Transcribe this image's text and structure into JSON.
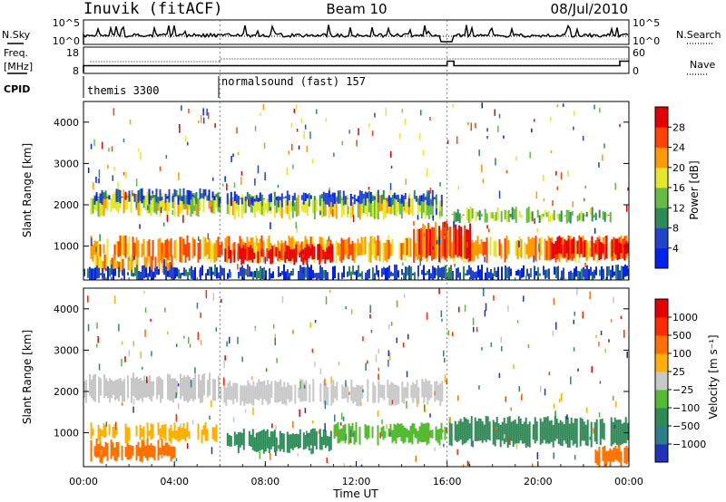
{
  "header": {
    "station": "Inuvik (fitACF)",
    "beam": "Beam 10",
    "date": "08/Jul/2010"
  },
  "labels": {
    "nsky": "N.Sky",
    "nsearch": "N.Search",
    "freq_line1": "Freq.",
    "freq_line2": "[MHz]",
    "nave": "Nave",
    "cpid": "CPID",
    "slant_range": "Slant Range [km]",
    "time_axis": "Time UT",
    "power_label": "Power [dB]",
    "velocity_label": "Velocity [m s⁻¹]"
  },
  "chart_data": [
    {
      "type": "line",
      "name": "noise-panel",
      "left_ticks": [
        "10^5",
        "10^0"
      ],
      "right_ticks": [
        "10^5",
        "10^0"
      ]
    },
    {
      "type": "line",
      "name": "frequency-panel",
      "left_ticks": [
        "18",
        "8"
      ],
      "right_ticks": [
        "60",
        "0"
      ],
      "frequency_steps": [
        {
          "t": 0.0,
          "f": 11
        },
        {
          "t": 6.0,
          "f": 11
        },
        {
          "t": 16.0,
          "f": 13
        },
        {
          "t": 16.3,
          "f": 11
        },
        {
          "t": 23.6,
          "f": 13
        },
        {
          "t": 24.0,
          "f": 13
        }
      ]
    },
    {
      "type": "table",
      "name": "cpid-panel",
      "programs": [
        {
          "start": 0.0,
          "end": 6.0,
          "label": "themis 3300"
        },
        {
          "start": 6.0,
          "end": 24.0,
          "label": "normalsound (fast) 157"
        }
      ]
    },
    {
      "type": "heatmap",
      "name": "power",
      "xlim": [
        0,
        24
      ],
      "ylim": [
        180,
        4500
      ],
      "yticks": [
        "4000",
        "3000",
        "2000",
        "1000"
      ],
      "ytick_values": [
        4000,
        3000,
        2000,
        1000
      ],
      "colorbar": {
        "ticks": [
          "28",
          "24",
          "20",
          "16",
          "12",
          "8",
          "4"
        ],
        "colors": [
          "#0022ee",
          "#2244cc",
          "#2e8b57",
          "#66bb44",
          "#e6e62a",
          "#ff9a00",
          "#ff4400",
          "#e60000"
        ]
      },
      "bands": [
        {
          "t0": 0.3,
          "t1": 6.0,
          "r0": 1820,
          "r1": 2200,
          "c": 4
        },
        {
          "t0": 0.3,
          "t1": 6.0,
          "r0": 2100,
          "r1": 2300,
          "c": 1
        },
        {
          "t0": 6.3,
          "t1": 15.8,
          "r0": 1750,
          "r1": 2150,
          "c": 4
        },
        {
          "t0": 6.3,
          "t1": 15.8,
          "r0": 2050,
          "r1": 2250,
          "c": 1
        },
        {
          "t0": 16.2,
          "t1": 23.2,
          "r0": 1650,
          "r1": 1850,
          "c": 3
        },
        {
          "t0": 0.3,
          "t1": 24.0,
          "r0": 700,
          "r1": 1150,
          "c": 5
        },
        {
          "t0": 0.5,
          "t1": 4.0,
          "r0": 350,
          "r1": 700,
          "c": 5
        },
        {
          "t0": 6.2,
          "t1": 11.0,
          "r0": 650,
          "r1": 950,
          "c": 7
        },
        {
          "t0": 14.5,
          "t1": 17.0,
          "r0": 700,
          "r1": 1500,
          "c": 6
        },
        {
          "t0": 20.5,
          "t1": 24.0,
          "r0": 750,
          "r1": 1150,
          "c": 7
        },
        {
          "t0": 0.0,
          "t1": 24.0,
          "r0": 200,
          "r1": 450,
          "c": 1
        }
      ]
    },
    {
      "type": "heatmap",
      "name": "velocity",
      "xlim": [
        0,
        24
      ],
      "ylim": [
        180,
        4500
      ],
      "yticks": [
        "4000",
        "3000",
        "2000",
        "1000"
      ],
      "ytick_values": [
        4000,
        3000,
        2000,
        1000
      ],
      "xticks": [
        "00:00",
        "04:00",
        "08:00",
        "12:00",
        "16:00",
        "20:00",
        "00:00"
      ],
      "xtick_values": [
        0,
        4,
        8,
        12,
        16,
        20,
        24
      ],
      "colorbar": {
        "ticks": [
          "1000",
          "500",
          "100",
          "25",
          "−25",
          "−100",
          "−500",
          "−1000"
        ],
        "colors": [
          "#2233bb",
          "#2e7d8a",
          "#2e8b57",
          "#55bb33",
          "#c8c8c8",
          "#ffb000",
          "#ff7000",
          "#ff2a00",
          "#e60000"
        ]
      },
      "bands": [
        {
          "t0": 0.0,
          "t1": 6.0,
          "r0": 1820,
          "r1": 2350,
          "c": 4
        },
        {
          "t0": 6.0,
          "t1": 15.8,
          "r0": 1750,
          "r1": 2200,
          "c": 4
        },
        {
          "t0": 0.3,
          "t1": 6.0,
          "r0": 850,
          "r1": 1150,
          "c": 5
        },
        {
          "t0": 0.3,
          "t1": 4.0,
          "r0": 350,
          "r1": 750,
          "c": 6
        },
        {
          "t0": 6.3,
          "t1": 11.0,
          "r0": 600,
          "r1": 1000,
          "c": 2
        },
        {
          "t0": 11.0,
          "t1": 16.0,
          "r0": 800,
          "r1": 1150,
          "c": 3
        },
        {
          "t0": 16.0,
          "t1": 24.0,
          "r0": 750,
          "r1": 1300,
          "c": 2
        },
        {
          "t0": 22.5,
          "t1": 24.0,
          "r0": 250,
          "r1": 650,
          "c": 6
        }
      ]
    }
  ]
}
